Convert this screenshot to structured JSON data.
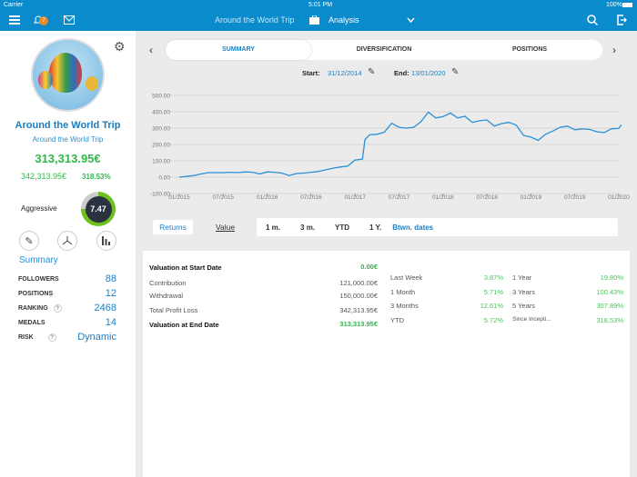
{
  "status": {
    "carrier": "Carrier",
    "time": "5:01 PM",
    "battery": "100%"
  },
  "header": {
    "notification_count": "7",
    "portfolio": "Around the World Trip",
    "section": "Analysis"
  },
  "profile": {
    "name": "Around the World Trip",
    "subtitle": "Around the World Trip",
    "valuation": "313,313.95€",
    "profit": "342,313.95€",
    "return": "318.53%",
    "risk_profile": "Aggressive",
    "score": "7.47",
    "score_fraction": 0.747
  },
  "summary": {
    "title": "Summary",
    "stats": [
      {
        "label": "FOLLOWERS",
        "value": "88"
      },
      {
        "label": "POSITIONS",
        "value": "12"
      },
      {
        "label": "RANKING",
        "value": "2468",
        "help": "?"
      },
      {
        "label": "MEDALS",
        "value": "14"
      },
      {
        "label": "RISK",
        "value": "Dynamic",
        "help": "?"
      }
    ]
  },
  "tabs": [
    "SUMMARY",
    "DIVERSIFICATION",
    "POSITIONS"
  ],
  "dates": {
    "start_label": "Start:",
    "start": "31/12/2014",
    "end_label": "End:",
    "end": "13/01/2020"
  },
  "chart_data": {
    "type": "line",
    "ylim": [
      -100,
      500
    ],
    "yticks": [
      "500.00",
      "400.00",
      "300.00",
      "200.00",
      "100.00",
      "0.00",
      "-100.00"
    ],
    "xticks": [
      "01/2015",
      "07/2015",
      "01/2016",
      "07/2016",
      "01/2017",
      "07/2017",
      "01/2018",
      "07/2018",
      "01/2019",
      "07/2019",
      "01/2020"
    ],
    "grid": true,
    "color": "#2b8fd6",
    "x_months_since_2015_01": null,
    "points": [
      [
        "01/2015",
        0
      ],
      [
        "03/2015",
        10
      ],
      [
        "04/2015",
        20
      ],
      [
        "05/2015",
        28
      ],
      [
        "07/2015",
        28
      ],
      [
        "08/2015",
        30
      ],
      [
        "09/2015",
        28
      ],
      [
        "10/2015",
        32
      ],
      [
        "11/2015",
        30
      ],
      [
        "12/2015",
        20
      ],
      [
        "01/2016",
        32
      ],
      [
        "02/2016",
        30
      ],
      [
        "03/2016",
        25
      ],
      [
        "04/2016",
        10
      ],
      [
        "05/2016",
        22
      ],
      [
        "06/2016",
        25
      ],
      [
        "07/2016",
        30
      ],
      [
        "08/2016",
        35
      ],
      [
        "09/2016",
        45
      ],
      [
        "10/2016",
        55
      ],
      [
        "11/2016",
        62
      ],
      [
        "12/2016",
        68
      ],
      [
        "01/2017",
        105
      ],
      [
        "02/2017",
        110
      ],
      [
        "02/2017",
        230
      ],
      [
        "03/2017",
        260
      ],
      [
        "04/2017",
        262
      ],
      [
        "05/2017",
        275
      ],
      [
        "06/2017",
        330
      ],
      [
        "07/2017",
        305
      ],
      [
        "08/2017",
        300
      ],
      [
        "09/2017",
        305
      ],
      [
        "10/2017",
        340
      ],
      [
        "11/2017",
        398
      ],
      [
        "12/2017",
        362
      ],
      [
        "01/2018",
        370
      ],
      [
        "02/2018",
        392
      ],
      [
        "03/2018",
        362
      ],
      [
        "04/2018",
        372
      ],
      [
        "05/2018",
        335
      ],
      [
        "06/2018",
        345
      ],
      [
        "07/2018",
        350
      ],
      [
        "08/2018",
        312
      ],
      [
        "09/2018",
        328
      ],
      [
        "10/2018",
        335
      ],
      [
        "11/2018",
        318
      ],
      [
        "12/2018",
        255
      ],
      [
        "01/2019",
        245
      ],
      [
        "02/2019",
        225
      ],
      [
        "03/2019",
        262
      ],
      [
        "04/2019",
        282
      ],
      [
        "05/2019",
        305
      ],
      [
        "06/2019",
        312
      ],
      [
        "07/2019",
        290
      ],
      [
        "08/2019",
        295
      ],
      [
        "09/2019",
        292
      ],
      [
        "10/2019",
        278
      ],
      [
        "11/2019",
        272
      ],
      [
        "12/2019",
        296
      ],
      [
        "01/2020",
        298
      ],
      [
        "01/2020",
        320
      ]
    ]
  },
  "filters": {
    "modes": [
      "Returns",
      "Value"
    ],
    "periods": [
      "1 m.",
      "3 m.",
      "YTD",
      "1 Y.",
      "Btwn. dates"
    ]
  },
  "valuation": [
    {
      "label": "Valuation at Start Date",
      "value": "0.00€"
    },
    {
      "label": "Contribution",
      "value": "121,000.00€"
    },
    {
      "label": "Withdrawal",
      "value": "150,000.00€"
    },
    {
      "label": "Total Profit Loss",
      "value": "342,313.95€"
    },
    {
      "label": "Valuation at End Date",
      "value": "313,313.95€"
    }
  ],
  "returns": [
    {
      "label": "Last Week",
      "value": "3.87%"
    },
    {
      "label": "1 Month",
      "value": "5.71%"
    },
    {
      "label": "3 Months",
      "value": "12.61%"
    },
    {
      "label": "YTD",
      "value": "5.72%"
    },
    {
      "label": "1 Year",
      "value": "19.80%"
    },
    {
      "label": "3 Years",
      "value": "100.43%"
    },
    {
      "label": "5 Years",
      "value": "307.89%"
    },
    {
      "label": "Since Incepti...",
      "value": "318.53%"
    }
  ]
}
